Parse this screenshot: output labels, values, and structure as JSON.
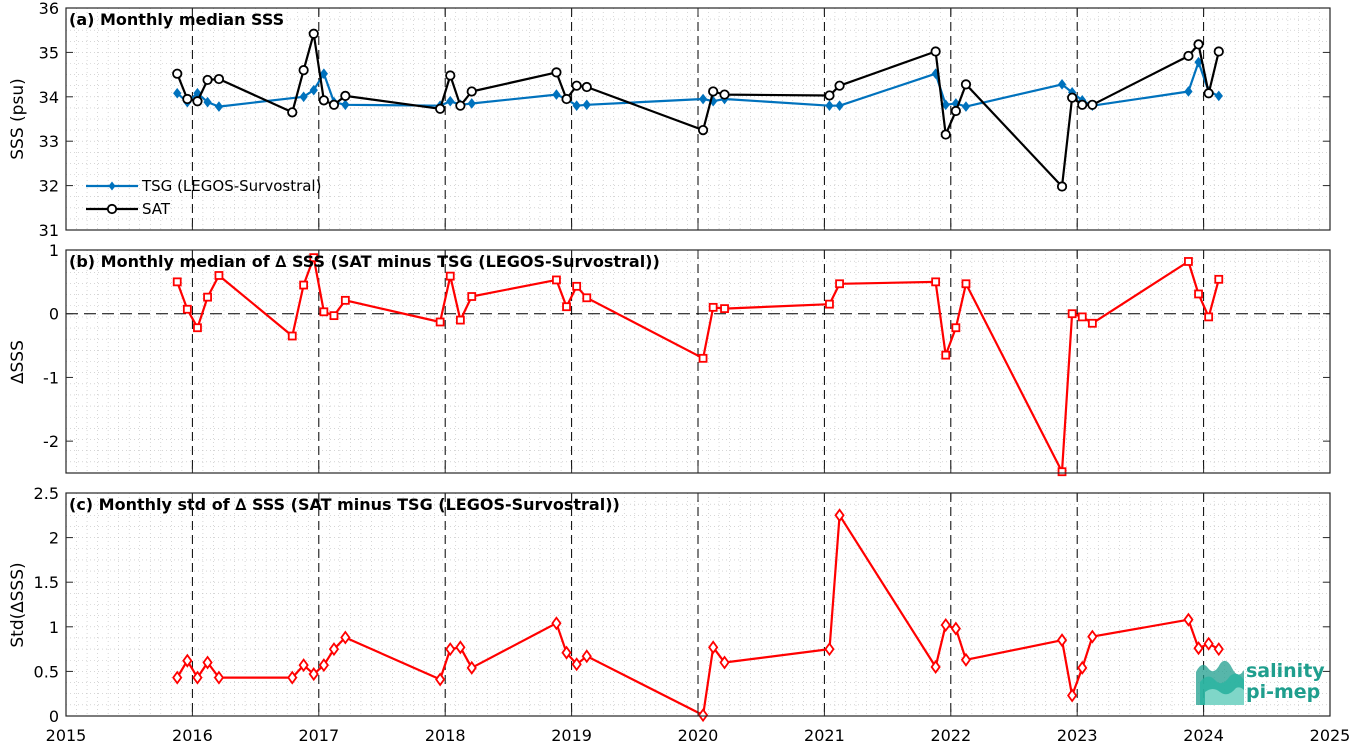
{
  "figure": {
    "x_tick_labels": [
      "2015",
      "2016",
      "2017",
      "2018",
      "2019",
      "2020",
      "2021",
      "2022",
      "2023",
      "2024",
      "2025"
    ],
    "year_lines": [
      2016,
      2017,
      2018,
      2019,
      2020,
      2021,
      2022,
      2023,
      2024
    ]
  },
  "chart_data": [
    {
      "type": "line",
      "title": "(a) Monthly median SSS",
      "ylabel": "SSS (psu)",
      "xlim": [
        2015,
        2025
      ],
      "ylim": [
        31,
        36
      ],
      "y_ticks": [
        31,
        32,
        33,
        34,
        35,
        36
      ],
      "grid": true,
      "legend_position": "bottom-left",
      "series": [
        {
          "name": "TSG (LEGOS-Survostral)",
          "color": "#0072bd",
          "marker": "diamond-filled",
          "x": [
            2015.88,
            2015.96,
            2016.04,
            2016.12,
            2016.21,
            2016.88,
            2016.96,
            2017.04,
            2017.12,
            2017.21,
            2017.96,
            2018.04,
            2018.12,
            2018.21,
            2018.88,
            2018.96,
            2019.04,
            2019.12,
            2020.04,
            2020.12,
            2020.21,
            2021.04,
            2021.12,
            2021.88,
            2021.96,
            2022.04,
            2022.12,
            2022.88,
            2022.96,
            2023.04,
            2023.12,
            2023.88,
            2023.96,
            2024.04,
            2024.12
          ],
          "y": [
            34.08,
            33.88,
            34.08,
            33.88,
            33.78,
            34.0,
            34.15,
            34.52,
            33.88,
            33.82,
            33.8,
            33.9,
            33.82,
            33.85,
            34.05,
            33.95,
            33.8,
            33.82,
            33.95,
            33.9,
            33.95,
            33.8,
            33.8,
            34.52,
            33.82,
            33.85,
            33.78,
            34.28,
            34.1,
            33.92,
            33.8,
            34.12,
            34.78,
            34.12,
            34.02
          ]
        },
        {
          "name": "SAT",
          "color": "#000000",
          "marker": "circle-open",
          "x": [
            2015.88,
            2015.96,
            2016.04,
            2016.12,
            2016.21,
            2016.79,
            2016.88,
            2016.96,
            2017.04,
            2017.12,
            2017.21,
            2017.96,
            2018.04,
            2018.12,
            2018.21,
            2018.88,
            2018.96,
            2019.04,
            2019.12,
            2020.04,
            2020.12,
            2020.21,
            2021.04,
            2021.12,
            2021.88,
            2021.96,
            2022.04,
            2022.12,
            2022.88,
            2022.96,
            2023.04,
            2023.12,
            2023.88,
            2023.96,
            2024.04,
            2024.12
          ],
          "y": [
            34.52,
            33.95,
            33.9,
            34.38,
            34.4,
            33.65,
            34.6,
            35.42,
            33.92,
            33.82,
            34.02,
            33.73,
            34.48,
            33.8,
            34.12,
            34.55,
            33.95,
            34.25,
            34.22,
            33.25,
            34.12,
            34.05,
            34.03,
            34.25,
            35.02,
            33.15,
            33.68,
            34.28,
            31.98,
            33.98,
            33.82,
            33.82,
            34.92,
            35.18,
            34.08,
            35.02
          ]
        }
      ]
    },
    {
      "type": "line",
      "title": "(b) Monthly median of ∆ SSS (SAT minus TSG (LEGOS-Survostral))",
      "ylabel": "∆SSS",
      "xlim": [
        2015,
        2025
      ],
      "ylim": [
        -2.5,
        1
      ],
      "y_ticks": [
        -2,
        -1,
        0,
        1
      ],
      "zero_line": true,
      "grid": true,
      "series": [
        {
          "color": "#ff0000",
          "marker": "square-open",
          "x": [
            2015.88,
            2015.96,
            2016.04,
            2016.12,
            2016.21,
            2016.79,
            2016.88,
            2016.96,
            2017.04,
            2017.12,
            2017.21,
            2017.96,
            2018.04,
            2018.12,
            2018.21,
            2018.88,
            2018.96,
            2019.04,
            2019.12,
            2020.04,
            2020.12,
            2020.21,
            2021.04,
            2021.12,
            2021.88,
            2021.96,
            2022.04,
            2022.12,
            2022.88,
            2022.96,
            2023.04,
            2023.12,
            2023.88,
            2023.96,
            2024.04,
            2024.12
          ],
          "y": [
            0.5,
            0.07,
            -0.22,
            0.26,
            0.6,
            -0.35,
            0.45,
            0.88,
            0.03,
            -0.03,
            0.21,
            -0.13,
            0.59,
            -0.1,
            0.27,
            0.53,
            0.11,
            0.43,
            0.25,
            -0.7,
            0.1,
            0.08,
            0.15,
            0.47,
            0.5,
            -0.65,
            -0.22,
            0.47,
            -2.48,
            0.0,
            -0.05,
            -0.15,
            0.82,
            0.31,
            -0.05,
            0.54
          ]
        }
      ]
    },
    {
      "type": "line",
      "title": "(c) Monthly std of ∆ SSS (SAT minus TSG (LEGOS-Survostral))",
      "ylabel": "Std(∆SSS)",
      "xlim": [
        2015,
        2025
      ],
      "ylim": [
        0,
        2.5
      ],
      "y_ticks": [
        0,
        0.5,
        1,
        1.5,
        2,
        2.5
      ],
      "grid": true,
      "series": [
        {
          "color": "#ff0000",
          "marker": "diamond-open",
          "x": [
            2015.88,
            2015.96,
            2016.04,
            2016.12,
            2016.21,
            2016.79,
            2016.88,
            2016.96,
            2017.04,
            2017.12,
            2017.21,
            2017.96,
            2018.04,
            2018.12,
            2018.21,
            2018.88,
            2018.96,
            2019.04,
            2019.12,
            2020.04,
            2020.12,
            2020.21,
            2021.04,
            2021.12,
            2021.88,
            2021.96,
            2022.04,
            2022.12,
            2022.88,
            2022.96,
            2023.04,
            2023.12,
            2023.88,
            2023.96,
            2024.04,
            2024.12
          ],
          "y": [
            0.43,
            0.62,
            0.43,
            0.6,
            0.43,
            0.43,
            0.57,
            0.47,
            0.57,
            0.75,
            0.88,
            0.41,
            0.75,
            0.77,
            0.54,
            1.04,
            0.71,
            0.58,
            0.67,
            0.01,
            0.77,
            0.6,
            0.75,
            2.25,
            0.55,
            1.02,
            0.98,
            0.63,
            0.85,
            0.23,
            0.54,
            0.89,
            1.08,
            0.76,
            0.81,
            0.75
          ]
        }
      ]
    }
  ],
  "logo": {
    "line1": "salinity",
    "line2": "pi-mep",
    "color": "#1f9e8d"
  }
}
